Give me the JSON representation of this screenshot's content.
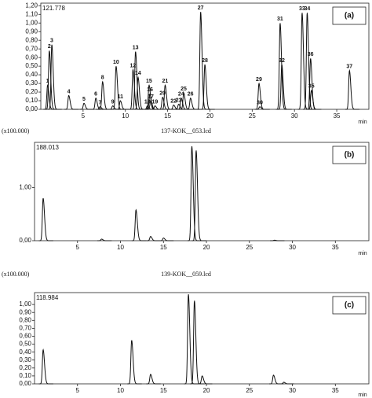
{
  "chart_data": [
    {
      "type": "line",
      "scale_label": "121.778",
      "panel_label": "(a)",
      "xlabel": "min",
      "color": "#111111",
      "x": [
        0.8,
        1.0,
        1.3,
        3.3,
        5.1,
        6.5,
        7.0,
        7.3,
        8.5,
        8.9,
        9.4,
        10.9,
        11.2,
        11.5,
        12.8,
        12.9,
        13.0,
        12.6,
        13.5,
        14.4,
        14.7,
        15.7,
        16.3,
        16.6,
        16.9,
        17.7,
        18.9,
        19.4,
        25.8,
        25.9,
        28.3,
        28.5,
        30.9,
        31.5,
        32.0,
        31.9,
        36.5
      ],
      "values": [
        0.28,
        0.68,
        0.75,
        0.16,
        0.07,
        0.13,
        0.03,
        0.32,
        0.04,
        0.5,
        0.1,
        0.46,
        0.67,
        0.37,
        0.28,
        0.18,
        0.1,
        0.04,
        0.04,
        0.14,
        0.28,
        0.05,
        0.06,
        0.13,
        0.19,
        0.13,
        1.13,
        0.52,
        0.3,
        0.03,
        1.0,
        0.52,
        1.12,
        1.12,
        0.22,
        0.59,
        0.45
      ],
      "peak_labels": [
        "1",
        "2",
        "3",
        "4",
        "5",
        "6",
        "7",
        "8",
        "9",
        "10",
        "11",
        "12",
        "13",
        "14",
        "15",
        "16",
        "17",
        "18",
        "19",
        "20",
        "21",
        "22",
        "23",
        "24",
        "25",
        "26",
        "27",
        "28",
        "29",
        "30",
        "31",
        "32",
        "33",
        "34",
        "35",
        "36",
        "37"
      ],
      "xlim": [
        0,
        38.8
      ],
      "ylim": [
        0,
        1.23
      ],
      "xticks": [
        5,
        10,
        15,
        20,
        25,
        30,
        35
      ],
      "yticks": [
        {
          "value": 0,
          "label": "0,00"
        },
        {
          "value": 0.1,
          "label": "0,10"
        },
        {
          "value": 0.2,
          "label": "0,20"
        },
        {
          "value": 0.3,
          "label": "0,30"
        },
        {
          "value": 0.4,
          "label": "0,40"
        },
        {
          "value": 0.5,
          "label": "0,50"
        },
        {
          "value": 0.6,
          "label": "0,60"
        },
        {
          "value": 0.7,
          "label": "0,70"
        },
        {
          "value": 0.8,
          "label": "0,80"
        },
        {
          "value": 0.9,
          "label": "0,90"
        },
        {
          "value": 1.0,
          "label": "1,00"
        },
        {
          "value": 1.1,
          "label": "1,10"
        },
        {
          "value": 1.2,
          "label": "1,20"
        }
      ]
    },
    {
      "type": "line",
      "y_multiplier": "(x100.000)",
      "title": "137-KOK__053.lcd",
      "scale_label": "188.013",
      "panel_label": "(b)",
      "xlabel": "min",
      "color": "#111111",
      "x": [
        1.0,
        7.8,
        11.8,
        13.5,
        15.0,
        18.3,
        18.8,
        27.9
      ],
      "values": [
        0.8,
        0.03,
        0.58,
        0.08,
        0.05,
        1.78,
        1.7,
        0.01
      ],
      "xlim": [
        0,
        38.9
      ],
      "ylim": [
        0,
        1.85
      ],
      "xticks": [
        5,
        10,
        15,
        20,
        25,
        30,
        35
      ],
      "yticks": [
        {
          "value": 0,
          "label": "0,00"
        },
        {
          "value": 1.0,
          "label": "1,00"
        }
      ]
    },
    {
      "type": "line",
      "y_multiplier": "(x100.000)",
      "title": "139-KOK__059.lcd",
      "scale_label": "118.984",
      "panel_label": "(c)",
      "xlabel": "min",
      "color": "#111111",
      "x": [
        1.0,
        11.3,
        13.5,
        17.9,
        18.6,
        19.5,
        27.8,
        29.0
      ],
      "values": [
        0.43,
        0.55,
        0.12,
        1.13,
        1.05,
        0.1,
        0.11,
        0.02
      ],
      "xlim": [
        0,
        38.9
      ],
      "ylim": [
        0,
        1.15
      ],
      "xticks": [
        5,
        10,
        15,
        20,
        25,
        30,
        35
      ],
      "yticks": [
        {
          "value": 0,
          "label": "0,00"
        },
        {
          "value": 0.1,
          "label": "0,10"
        },
        {
          "value": 0.2,
          "label": "0,20"
        },
        {
          "value": 0.3,
          "label": "0,30"
        },
        {
          "value": 0.4,
          "label": "0,40"
        },
        {
          "value": 0.5,
          "label": "0,50"
        },
        {
          "value": 0.6,
          "label": "0,60"
        },
        {
          "value": 0.7,
          "label": "0,70"
        },
        {
          "value": 0.8,
          "label": "0,80"
        },
        {
          "value": 0.9,
          "label": "0,90"
        },
        {
          "value": 1.0,
          "label": "1,00"
        }
      ]
    }
  ]
}
